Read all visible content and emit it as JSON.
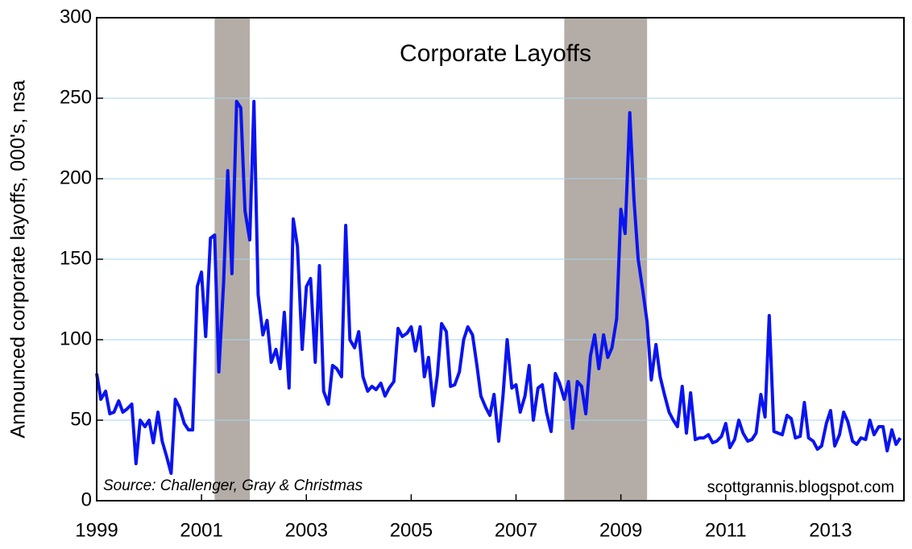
{
  "chart_data": {
    "type": "line",
    "title": "Corporate Layoffs",
    "ylabel": "Announced corporate layoffs, 000's, nsa",
    "annotations": [
      "Source: Challenger, Gray & Christmas",
      "scottgrannis.blogspot.com"
    ],
    "xlim": [
      1999,
      2014.4
    ],
    "xticks": [
      1999,
      2001,
      2003,
      2005,
      2007,
      2009,
      2011,
      2013
    ],
    "ylim": [
      0,
      300
    ],
    "yticks": [
      0,
      50,
      100,
      150,
      200,
      250,
      300
    ],
    "grid": true,
    "recessions": [
      [
        2001.25,
        2001.92
      ],
      [
        2007.92,
        2009.5
      ]
    ],
    "recession_color": "#b4aca6",
    "x": [
      1999.0,
      1999.08,
      1999.17,
      1999.25,
      1999.33,
      1999.42,
      1999.5,
      1999.58,
      1999.67,
      1999.75,
      1999.83,
      1999.92,
      2000.0,
      2000.08,
      2000.17,
      2000.25,
      2000.33,
      2000.42,
      2000.5,
      2000.58,
      2000.67,
      2000.75,
      2000.83,
      2000.92,
      2001.0,
      2001.08,
      2001.17,
      2001.25,
      2001.33,
      2001.42,
      2001.5,
      2001.58,
      2001.67,
      2001.75,
      2001.83,
      2001.92,
      2002.0,
      2002.08,
      2002.17,
      2002.25,
      2002.33,
      2002.42,
      2002.5,
      2002.58,
      2002.67,
      2002.75,
      2002.83,
      2002.92,
      2003.0,
      2003.08,
      2003.17,
      2003.25,
      2003.33,
      2003.42,
      2003.5,
      2003.58,
      2003.67,
      2003.75,
      2003.83,
      2003.92,
      2004.0,
      2004.08,
      2004.17,
      2004.25,
      2004.33,
      2004.42,
      2004.5,
      2004.58,
      2004.67,
      2004.75,
      2004.83,
      2004.92,
      2005.0,
      2005.08,
      2005.17,
      2005.25,
      2005.33,
      2005.42,
      2005.5,
      2005.58,
      2005.67,
      2005.75,
      2005.83,
      2005.92,
      2006.0,
      2006.08,
      2006.17,
      2006.25,
      2006.33,
      2006.42,
      2006.5,
      2006.58,
      2006.67,
      2006.75,
      2006.83,
      2006.92,
      2007.0,
      2007.08,
      2007.17,
      2007.25,
      2007.33,
      2007.42,
      2007.5,
      2007.58,
      2007.67,
      2007.75,
      2007.83,
      2007.92,
      2008.0,
      2008.08,
      2008.17,
      2008.25,
      2008.33,
      2008.42,
      2008.5,
      2008.58,
      2008.67,
      2008.75,
      2008.83,
      2008.92,
      2009.0,
      2009.08,
      2009.17,
      2009.25,
      2009.33,
      2009.42,
      2009.5,
      2009.58,
      2009.67,
      2009.75,
      2009.83,
      2009.92,
      2010.0,
      2010.08,
      2010.17,
      2010.25,
      2010.33,
      2010.42,
      2010.5,
      2010.58,
      2010.67,
      2010.75,
      2010.83,
      2010.92,
      2011.0,
      2011.08,
      2011.17,
      2011.25,
      2011.33,
      2011.42,
      2011.5,
      2011.58,
      2011.67,
      2011.75,
      2011.83,
      2011.92,
      2012.0,
      2012.08,
      2012.17,
      2012.25,
      2012.33,
      2012.42,
      2012.5,
      2012.58,
      2012.67,
      2012.75,
      2012.83,
      2012.92,
      2013.0,
      2013.08,
      2013.17,
      2013.25,
      2013.33,
      2013.42,
      2013.5,
      2013.58,
      2013.67,
      2013.75,
      2013.83,
      2013.92,
      2014.0,
      2014.08,
      2014.17,
      2014.25,
      2014.33
    ],
    "series": [
      {
        "name": "Corporate layoffs",
        "color": "#0a14f0",
        "values": [
          79,
          63,
          68,
          54,
          55,
          62,
          55,
          57,
          60,
          23,
          50,
          46,
          50,
          36,
          55,
          37,
          28,
          17,
          63,
          58,
          48,
          44,
          44,
          133,
          142,
          102,
          163,
          165,
          80,
          135,
          205,
          141,
          248,
          244,
          180,
          162,
          248,
          128,
          103,
          112,
          86,
          94,
          82,
          117,
          70,
          175,
          158,
          94,
          133,
          138,
          86,
          146,
          68,
          60,
          84,
          82,
          77,
          171,
          100,
          95,
          105,
          77,
          68,
          71,
          69,
          73,
          65,
          70,
          74,
          107,
          102,
          104,
          108,
          93,
          108,
          77,
          89,
          59,
          78,
          110,
          105,
          71,
          72,
          80,
          100,
          108,
          103,
          85,
          65,
          58,
          53,
          66,
          37,
          65,
          100,
          70,
          72,
          55,
          65,
          84,
          50,
          70,
          72,
          55,
          43,
          79,
          73,
          63,
          74,
          45,
          74,
          71,
          54,
          90,
          103,
          82,
          103,
          89,
          95,
          113,
          181,
          166,
          241,
          187,
          150,
          130,
          111,
          75,
          97,
          77,
          66,
          55,
          50,
          46,
          71,
          42,
          67,
          38,
          39,
          39,
          41,
          36,
          37,
          40,
          48,
          33,
          38,
          50,
          42,
          37,
          38,
          42,
          66,
          52,
          115,
          43,
          42,
          41,
          53,
          51,
          39,
          40,
          61,
          39,
          37,
          32,
          34,
          48,
          56,
          34,
          41,
          55,
          49,
          37,
          35,
          39,
          38,
          50,
          41,
          46,
          46,
          31,
          44,
          35,
          39
        ]
      }
    ]
  }
}
